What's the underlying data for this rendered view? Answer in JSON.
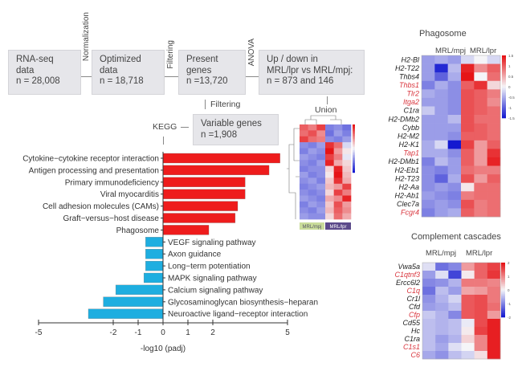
{
  "flow": {
    "boxes": [
      {
        "lines": [
          "RNA-seq",
          "data",
          "n = 28,008"
        ]
      },
      {
        "lines": [
          "Optimized",
          "data",
          "n = 18,718"
        ]
      },
      {
        "lines": [
          "Present",
          "genes",
          "n =13,720"
        ]
      },
      {
        "lines": [
          "Up / down in",
          "MRL/lpr vs MRL/mpj:",
          "n = 873 and 146"
        ]
      },
      {
        "lines": [
          "Variable genes",
          "n =1,908"
        ]
      }
    ],
    "steps": {
      "normalization": "Normalization",
      "filtering1": "Filtering",
      "anova": "ANOVA",
      "filtering2": "Filtering",
      "kegg": "KEGG",
      "union": "Union"
    }
  },
  "union_heatmap": {
    "group_labels": [
      "MRL/mpj",
      "MRL/lpr"
    ],
    "group_colors": [
      "#c9dc9a",
      "#5b4a8a"
    ],
    "values": [
      [
        1.0,
        0.8,
        1.2,
        -0.8,
        -0.7,
        -0.9
      ],
      [
        0.9,
        1.1,
        0.7,
        -0.9,
        -0.6,
        -0.8
      ],
      [
        1.2,
        0.9,
        0.8,
        -0.7,
        -0.8,
        -0.6
      ],
      [
        -0.7,
        -0.8,
        -0.6,
        1.3,
        0.9,
        -0.2
      ],
      [
        -0.8,
        -0.6,
        -0.7,
        1.5,
        0.6,
        0.1
      ],
      [
        -0.6,
        -0.7,
        -0.8,
        1.2,
        0.8,
        -0.1
      ],
      [
        -0.7,
        -0.8,
        -0.6,
        1.4,
        0.5,
        0.2
      ],
      [
        -0.8,
        -0.7,
        -0.7,
        0.2,
        1.4,
        0.3
      ],
      [
        -0.6,
        -0.8,
        -0.7,
        0.1,
        1.5,
        0.4
      ],
      [
        -0.7,
        -0.6,
        -0.8,
        0.3,
        1.3,
        0.5
      ],
      [
        -0.8,
        -0.7,
        -0.6,
        0.4,
        0.6,
        1.2
      ],
      [
        -0.7,
        -0.8,
        -0.7,
        0.2,
        1.2,
        0.8
      ],
      [
        -0.6,
        -0.7,
        -0.8,
        0.5,
        0.7,
        1.4
      ],
      [
        -0.8,
        -0.6,
        -0.7,
        0.3,
        1.1,
        0.6
      ],
      [
        -0.7,
        -0.8,
        -0.6,
        0.4,
        1.0,
        0.7
      ],
      [
        -0.6,
        -0.7,
        -0.7,
        0.2,
        0.9,
        0.5
      ]
    ]
  },
  "chart_data": [
    {
      "type": "bar",
      "orientation": "horizontal",
      "categories": [
        "Cytokine−cytokine receptor interaction",
        "Antigen processing and presentation",
        "Primary immunodeficiency",
        "Viral myocarditis",
        "Cell adhesion molecules (CAMs)",
        "Graft−versus−host disease",
        "Phagosome",
        "VEGF signaling pathway",
        "Axon guidance",
        "Long−term potentiation",
        "MAPK signaling pathway",
        "Calcium signaling pathway",
        "Glycosaminoglycan biosynthesis−heparan",
        "Neuroactive ligand−receptor interaction"
      ],
      "values": [
        4.7,
        4.26,
        3.3,
        3.3,
        3.0,
        2.9,
        1.84,
        -0.7,
        -0.7,
        -0.7,
        -0.77,
        -1.9,
        -2.4,
        -3.0
      ],
      "colors": {
        "positive": "#ee1c1c",
        "negative": "#1eaee0"
      },
      "xlabel": "-log10 (padj)",
      "xticks": [
        -5,
        -2,
        -1,
        0,
        1,
        2,
        5
      ],
      "xlim": [
        -5,
        5
      ]
    },
    {
      "type": "heatmap",
      "title": "Phagosome",
      "columns_groups": [
        "MRL/mpj",
        "MRL/lpr"
      ],
      "colorbar_ticks": [
        "1.5",
        "1",
        "0.5",
        "0",
        "-0.5",
        "-1",
        "-1.5"
      ],
      "range": [
        -1.5,
        1.5
      ],
      "rows": [
        {
          "gene": "H2-Bl",
          "highlight": false,
          "values": [
            -0.6,
            -0.5,
            -0.6,
            -0.2,
            0,
            -0.2
          ]
        },
        {
          "gene": "H2-T22",
          "highlight": false,
          "values": [
            -0.6,
            -1.4,
            -0.4,
            1.4,
            0.7,
            1.0
          ]
        },
        {
          "gene": "Thbs4",
          "highlight": false,
          "values": [
            -0.6,
            -1.0,
            -0.5,
            1.5,
            0,
            0.9
          ]
        },
        {
          "gene": "Thbs1",
          "highlight": true,
          "values": [
            -0.8,
            -0.5,
            -0.7,
            1.0,
            1.3,
            0.2
          ]
        },
        {
          "gene": "Tlr2",
          "highlight": true,
          "values": [
            -0.5,
            -0.6,
            -0.7,
            1.1,
            1.0,
            0.8
          ]
        },
        {
          "gene": "Itga2",
          "highlight": true,
          "values": [
            -0.6,
            -0.6,
            -0.7,
            1.1,
            1.0,
            0.7
          ]
        },
        {
          "gene": "C1ra",
          "highlight": false,
          "values": [
            -0.3,
            -0.6,
            -0.7,
            1.1,
            1.0,
            0.9
          ]
        },
        {
          "gene": "H2-DMb2",
          "highlight": false,
          "values": [
            -0.6,
            -0.6,
            -0.4,
            1.1,
            0.9,
            0.9
          ]
        },
        {
          "gene": "Cybb",
          "highlight": false,
          "values": [
            -0.6,
            -0.6,
            -0.6,
            1.1,
            1.0,
            0.9
          ]
        },
        {
          "gene": "H2-M2",
          "highlight": false,
          "values": [
            -0.6,
            -0.6,
            -0.7,
            1.0,
            1.0,
            0.9
          ]
        },
        {
          "gene": "H2-K1",
          "highlight": false,
          "values": [
            -0.5,
            -0.2,
            -1.5,
            1.2,
            0.6,
            1.0
          ]
        },
        {
          "gene": "Tap1",
          "highlight": true,
          "values": [
            -0.5,
            -0.5,
            -0.7,
            1.0,
            0.6,
            1.3
          ]
        },
        {
          "gene": "H2-DMb1",
          "highlight": false,
          "values": [
            -0.8,
            -0.4,
            -0.6,
            1.0,
            0.6,
            1.4
          ]
        },
        {
          "gene": "H2-Eb1",
          "highlight": false,
          "values": [
            -0.7,
            -0.8,
            -0.6,
            0.9,
            0.8,
            0.8
          ]
        },
        {
          "gene": "H2-T23",
          "highlight": false,
          "values": [
            -0.7,
            -1.0,
            -0.5,
            1.1,
            0.6,
            1.0
          ]
        },
        {
          "gene": "H2-Aa",
          "highlight": false,
          "values": [
            -0.7,
            -0.6,
            -0.7,
            0.1,
            0.9,
            0.9
          ]
        },
        {
          "gene": "H2-Ab1",
          "highlight": false,
          "values": [
            -0.6,
            -0.7,
            -0.8,
            0.8,
            0.9,
            0.9
          ]
        },
        {
          "gene": "Clec7a",
          "highlight": false,
          "values": [
            -0.7,
            -0.6,
            -0.7,
            1.1,
            0.8,
            0.9
          ]
        },
        {
          "gene": "Fcgr4",
          "highlight": true,
          "values": [
            -0.8,
            -0.6,
            -0.5,
            1.0,
            0.8,
            0.9
          ]
        }
      ]
    },
    {
      "type": "heatmap",
      "title": "Complement cascades",
      "columns_groups": [
        "MRL/mpj",
        "MRL/lpr"
      ],
      "colorbar_ticks": [
        "2",
        "1",
        "0",
        "-1",
        "-2"
      ],
      "range": [
        -2,
        2
      ],
      "rows": [
        {
          "gene": "Vwa5a",
          "highlight": false,
          "values": [
            -0.2,
            -1.2,
            -1.0,
            0.8,
            1.3,
            1.6
          ]
        },
        {
          "gene": "C1qtnf3",
          "highlight": true,
          "values": [
            -0.8,
            -0.2,
            -1.6,
            0.1,
            1.3,
            1.7
          ]
        },
        {
          "gene": "Ercc6l2",
          "highlight": false,
          "values": [
            -1.0,
            -0.9,
            -0.6,
            1.1,
            1.1,
            1.0
          ]
        },
        {
          "gene": "C1q",
          "highlight": true,
          "values": [
            -1.2,
            -0.5,
            -0.8,
            0.7,
            0.8,
            1.1
          ]
        },
        {
          "gene": "Cr1l",
          "highlight": false,
          "values": [
            -0.9,
            -0.6,
            -0.3,
            1.4,
            1.5,
            1.1
          ]
        },
        {
          "gene": "Cfd",
          "highlight": false,
          "values": [
            -0.8,
            -0.7,
            -0.5,
            1.4,
            1.5,
            1.2
          ]
        },
        {
          "gene": "Cfp",
          "highlight": true,
          "values": [
            -0.4,
            -0.6,
            -1.0,
            1.4,
            1.5,
            0.8
          ]
        },
        {
          "gene": "Cd55",
          "highlight": false,
          "values": [
            -0.5,
            -0.6,
            -0.5,
            -0.1,
            1.5,
            1.9
          ]
        },
        {
          "gene": "Hc",
          "highlight": false,
          "values": [
            -0.5,
            -0.6,
            -0.5,
            0.1,
            1.6,
            1.9
          ]
        },
        {
          "gene": "C1ra",
          "highlight": false,
          "values": [
            -0.5,
            -0.8,
            -0.6,
            0.3,
            1.0,
            1.9
          ]
        },
        {
          "gene": "C1s1",
          "highlight": true,
          "values": [
            -0.5,
            -0.7,
            -0.2,
            0.0,
            1.0,
            1.9
          ]
        },
        {
          "gene": "C6",
          "highlight": true,
          "values": [
            -0.7,
            -0.9,
            -0.5,
            -0.3,
            0.2,
            1.9
          ]
        }
      ]
    }
  ]
}
